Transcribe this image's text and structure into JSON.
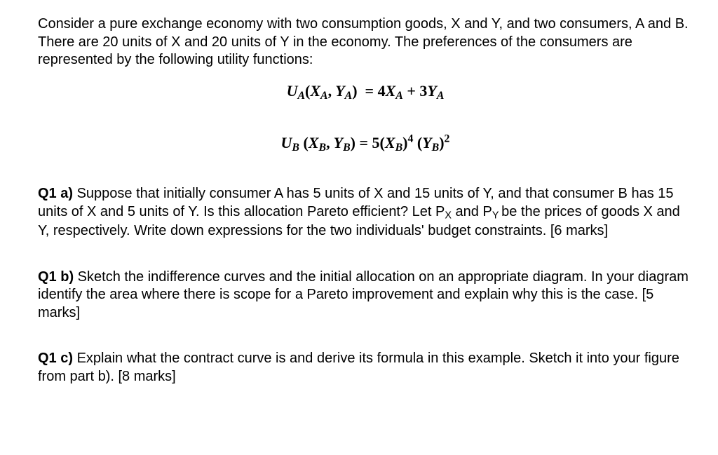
{
  "intro": "Consider a pure exchange economy with two consumption goods, X and Y, and two consumers, A and B. There are 20 units of X and 20 units of Y in the economy. The preferences of the consumers are represented by the following utility functions:",
  "equations": {
    "ua_html": "U<sub>A</sub><span class='rm'>(</span>X<sub>A</sub><span class='rm'>,</span> Y<sub>A</sub><span class='rm'>)</span>&nbsp;&nbsp;<span class='rm'>=</span>&nbsp;<span class='rm'>4</span>X<sub>A</sub> <span class='rm'>+</span> <span class='rm'>3</span>Y<sub>A</sub>",
    "ub_html": "U<sub>B</sub> <span class='rm'>(</span>X<sub>B</sub><span class='rm'>,</span> Y<sub>B</sub><span class='rm'>)</span> <span class='rm'>=</span> <span class='rm'>5(</span>X<sub>B</sub><span class='rm'>)</span><sup>4</sup> <span class='rm'>(</span>Y<sub>B</sub><span class='rm'>)</span><sup>2</sup>"
  },
  "q1a": {
    "label": "Q1 a) ",
    "text_html": "Suppose that initially consumer A has 5 units of X and 15 units of Y, and that consumer B has 15 units of X and 5 units of Y. Is this allocation Pareto efficient? Let P<span class='subp'>X</span> and P<span class='subp'>Y </span>be the prices of goods X and Y, respectively. Write down expressions for the two individuals' budget constraints. [6 marks]"
  },
  "q1b": {
    "label": "Q1 b) ",
    "text": "Sketch the indifference curves and the initial allocation on an appropriate diagram. In your diagram identify the area where there is scope for a Pareto improvement and explain why this is the case. [5 marks]"
  },
  "q1c": {
    "label": "Q1 c) ",
    "text": "Explain what the contract curve is and derive its formula in this example. Sketch it into your figure from part b). [8 marks]"
  }
}
